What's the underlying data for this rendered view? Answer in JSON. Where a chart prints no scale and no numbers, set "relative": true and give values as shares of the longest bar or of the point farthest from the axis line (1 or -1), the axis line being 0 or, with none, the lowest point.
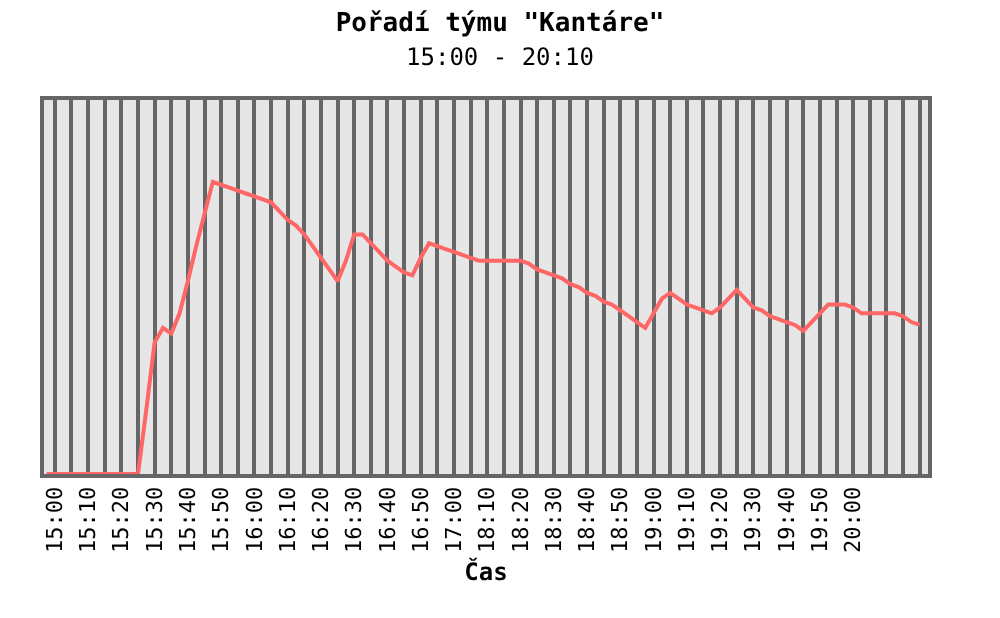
{
  "chart_data": {
    "type": "line",
    "title": "Pořadí týmu \"Kantáre\"",
    "subtitle": "15:00 - 20:10",
    "xlabel": "Čas",
    "relative": true,
    "grid": "x",
    "marker": "none",
    "line_style": "solid",
    "categories": [
      null,
      "15:00",
      null,
      null,
      null,
      "15:10",
      null,
      null,
      null,
      "15:20",
      null,
      null,
      null,
      "15:30",
      null,
      null,
      null,
      "15:40",
      null,
      null,
      null,
      "15:50",
      null,
      null,
      null,
      "16:00",
      null,
      null,
      null,
      "16:10",
      null,
      null,
      null,
      "16:20",
      null,
      null,
      null,
      "16:30",
      null,
      null,
      null,
      "16:40",
      null,
      null,
      null,
      "16:50",
      null,
      null,
      null,
      "17:00",
      null,
      null,
      null,
      "18:10",
      null,
      null,
      null,
      "18:20",
      null,
      null,
      null,
      "18:30",
      null,
      null,
      null,
      "18:40",
      null,
      null,
      null,
      "18:50",
      null,
      null,
      null,
      "19:00",
      null,
      null,
      null,
      "19:10",
      null,
      null,
      null,
      "19:20",
      null,
      null,
      null,
      "19:30",
      null,
      null,
      null,
      "19:40",
      null,
      null,
      null,
      "19:50",
      null,
      null,
      null,
      "20:00",
      null,
      null,
      null,
      null,
      null,
      null,
      null,
      null
    ],
    "series": [
      {
        "color": "#ff6666",
        "values": [
          0,
          0,
          0,
          0,
          0,
          0,
          0,
          0,
          0,
          0,
          0,
          0,
          0.22,
          0.45,
          0.5,
          0.48,
          0.55,
          0.66,
          0.78,
          0.89,
          1,
          0.99,
          0.98,
          0.97,
          0.96,
          0.95,
          0.94,
          0.93,
          0.9,
          0.87,
          0.85,
          0.82,
          0.78,
          0.74,
          0.7,
          0.66,
          0.73,
          0.82,
          0.82,
          0.79,
          0.76,
          0.73,
          0.71,
          0.69,
          0.68,
          0.74,
          0.79,
          0.78,
          0.77,
          0.76,
          0.75,
          0.74,
          0.73,
          0.73,
          0.73,
          0.73,
          0.73,
          0.73,
          0.72,
          0.7,
          0.69,
          0.68,
          0.67,
          0.65,
          0.64,
          0.62,
          0.61,
          0.59,
          0.58,
          0.56,
          0.54,
          0.52,
          0.5,
          0.55,
          0.6,
          0.62,
          0.6,
          0.58,
          0.57,
          0.56,
          0.55,
          0.57,
          0.6,
          0.63,
          0.6,
          0.57,
          0.56,
          0.54,
          0.53,
          0.52,
          0.51,
          0.49,
          0.52,
          0.55,
          0.58,
          0.58,
          0.58,
          0.57,
          0.55,
          0.55,
          0.55,
          0.55,
          0.55,
          0.54,
          0.52,
          0.51
        ]
      }
    ]
  }
}
